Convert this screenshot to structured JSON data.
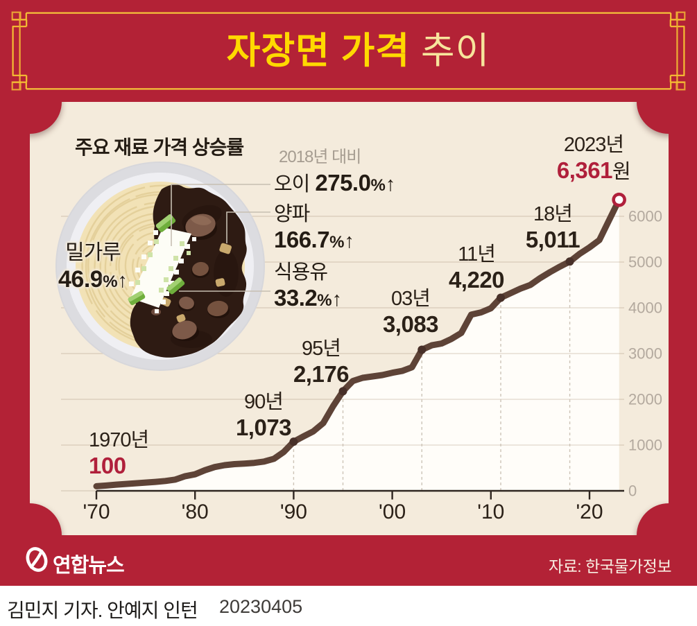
{
  "title": {
    "main": "자장면 가격",
    "sub": " 추이"
  },
  "panel": {
    "heading": "주요 재료 가격 상승률",
    "comparison_note": "2018년 대비",
    "ingredients": [
      {
        "name": "밀가루",
        "value": "46.9",
        "pct": "%",
        "arrow": "↑"
      },
      {
        "name": "오이",
        "value": "275.0",
        "pct": "%",
        "arrow": "↑"
      },
      {
        "name": "양파",
        "value": "166.7",
        "pct": "%",
        "arrow": "↑"
      },
      {
        "name": "식용유",
        "value": "33.2",
        "pct": "%",
        "arrow": "↑"
      }
    ]
  },
  "chart_data": {
    "type": "line",
    "title": "자장면 가격 추이",
    "x": [
      1970,
      1971,
      1972,
      1973,
      1974,
      1975,
      1976,
      1977,
      1978,
      1979,
      1980,
      1981,
      1982,
      1983,
      1984,
      1985,
      1986,
      1987,
      1988,
      1989,
      1990,
      1991,
      1992,
      1993,
      1994,
      1995,
      1996,
      1997,
      1998,
      1999,
      2000,
      2001,
      2002,
      2003,
      2004,
      2005,
      2006,
      2007,
      2008,
      2009,
      2010,
      2011,
      2012,
      2013,
      2014,
      2015,
      2016,
      2017,
      2018,
      2019,
      2020,
      2021,
      2022,
      2023
    ],
    "values": [
      100,
      115,
      135,
      150,
      165,
      180,
      195,
      215,
      245,
      320,
      360,
      450,
      520,
      560,
      583,
      595,
      610,
      640,
      700,
      850,
      1073,
      1190,
      1300,
      1480,
      1850,
      2176,
      2400,
      2470,
      2500,
      2530,
      2580,
      2620,
      2700,
      3083,
      3180,
      3220,
      3320,
      3450,
      3850,
      3900,
      3990,
      4220,
      4320,
      4420,
      4500,
      4650,
      4780,
      4900,
      5011,
      5180,
      5320,
      5480,
      5920,
      6361
    ],
    "x_tick_labels": [
      "'70",
      "'80",
      "'90",
      "'00",
      "'10",
      "'20"
    ],
    "x_tick_years": [
      1970,
      1980,
      1990,
      2000,
      2010,
      2020
    ],
    "y_ticks": [
      0,
      1000,
      2000,
      3000,
      4000,
      5000,
      6000
    ],
    "ylim": [
      0,
      6600
    ],
    "xlim": [
      1966.4,
      2023.5
    ],
    "grid": "horizontal",
    "legend": "none",
    "marked_years": [
      1990,
      1995,
      2003,
      2011,
      2018
    ],
    "end_marker": {
      "year": 2023,
      "value": 6361
    },
    "annotations": [
      {
        "year": 1970,
        "year_label": "1970년",
        "value_label": "100",
        "suffix": "",
        "red": true
      },
      {
        "year": 1990,
        "year_label": "90년",
        "value_label": "1,073",
        "suffix": "",
        "red": false
      },
      {
        "year": 1995,
        "year_label": "95년",
        "value_label": "2,176",
        "suffix": "",
        "red": false
      },
      {
        "year": 2003,
        "year_label": "03년",
        "value_label": "3,083",
        "suffix": "",
        "red": false
      },
      {
        "year": 2011,
        "year_label": "11년",
        "value_label": "4,220",
        "suffix": "",
        "red": false
      },
      {
        "year": 2018,
        "year_label": "18년",
        "value_label": "5,011",
        "suffix": "",
        "red": false
      },
      {
        "year": 2023,
        "year_label": "2023년",
        "value_label": "6,361",
        "suffix": "원",
        "red": true
      }
    ]
  },
  "footer": {
    "logo_text": "연합뉴스",
    "source": "자료: 한국물가정보"
  },
  "byline": {
    "credit": "김민지 기자. 안예지 인턴",
    "date": "20230405"
  },
  "colors": {
    "red": "#b32236",
    "cream": "#f4ebdc",
    "gold": "#f2b92f",
    "title_yellow": "#ffd900",
    "title_pale": "#f7e49c",
    "line_brown": "#5e4337",
    "accent_red": "#b0203b",
    "dark_text": "#2b2118",
    "axis_gray": "#b3a99e"
  }
}
